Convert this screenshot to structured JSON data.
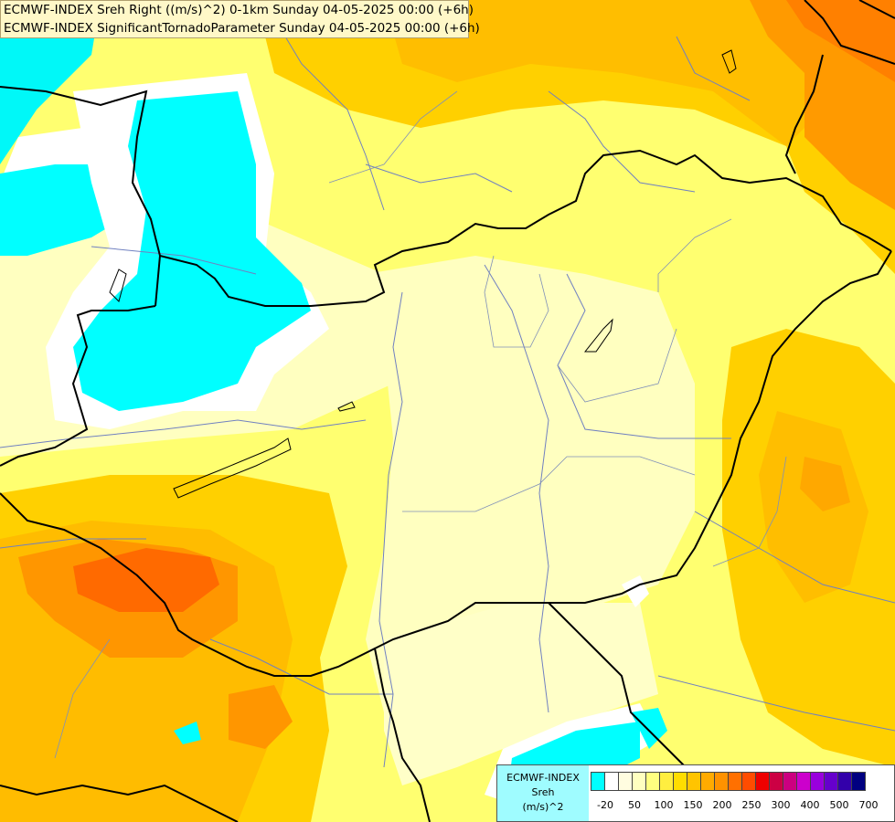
{
  "title": {
    "line1": "ECMWF-INDEX Sreh Right ((m/s)^2) 0-1km Sunday 04-05-2025 00:00 (+6h)",
    "line2": "ECMWF-INDEX SignificantTornadoParameter Sunday 04-05-2025 00:00 (+6h)"
  },
  "legend": {
    "source": "ECMWF-INDEX",
    "variable": "Sreh",
    "unit": "(m/s)^2",
    "ticks": [
      "-20",
      "50",
      "100",
      "150",
      "200",
      "250",
      "300",
      "400",
      "500",
      "700"
    ],
    "colors": [
      "#00ffff",
      "#ffffff",
      "#fffde0",
      "#ffffc0",
      "#ffff80",
      "#ffee40",
      "#ffdd00",
      "#ffc400",
      "#ffab00",
      "#ff9200",
      "#ff7000",
      "#ff4c00",
      "#ee0000",
      "#cc0044",
      "#cc0080",
      "#cc00cc",
      "#9900dd",
      "#6600cc",
      "#3300aa",
      "#000080"
    ]
  }
}
